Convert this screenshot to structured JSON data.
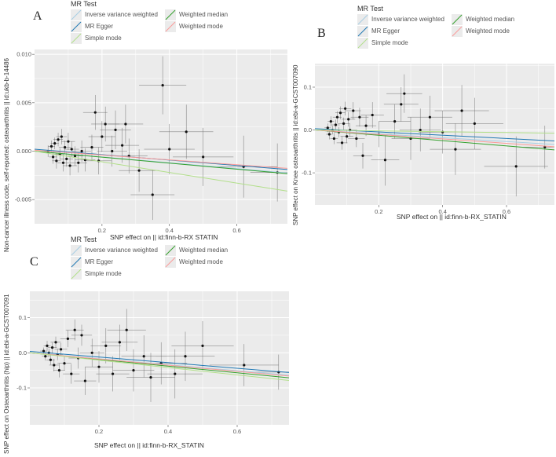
{
  "legend": {
    "title": "MR Test",
    "items": [
      {
        "label": "Inverse variance weighted",
        "color": "#a6cee3"
      },
      {
        "label": "Weighted median",
        "color": "#33a02c"
      },
      {
        "label": "MR Egger",
        "color": "#1f78b4"
      },
      {
        "label": "Weighted mode",
        "color": "#fb9a99"
      },
      {
        "label": "Simple mode",
        "color": "#b2df8a"
      }
    ]
  },
  "chart_data": [
    {
      "panel_label": "A",
      "type": "scatter",
      "xlabel": "SNP effect on  || id:finn-b-RX  STATIN",
      "ylabel": "Non-cancer illness code, self-reported: osteoarthritis || id:ukb-b-14486",
      "xlim": [
        0.0,
        0.75
      ],
      "ylim": [
        -0.0075,
        0.0105
      ],
      "xticks": [
        0.2,
        0.4,
        0.6
      ],
      "xtick_labels": [
        "0.2",
        "0.4",
        "0.6"
      ],
      "yticks": [
        -0.005,
        0.0,
        0.005,
        0.01
      ],
      "ytick_labels": [
        "-0.005",
        "0.000",
        "0.005",
        "0.010"
      ],
      "lines": [
        {
          "method": "Inverse variance weighted",
          "slope": -0.003,
          "intercept": 0.0
        },
        {
          "method": "Weighted median",
          "slope": -0.0031,
          "intercept": 0.0
        },
        {
          "method": "MR Egger",
          "slope": -0.0028,
          "intercept": 0.0002
        },
        {
          "method": "Weighted mode",
          "slope": -0.0025,
          "intercept": 0.0001
        },
        {
          "method": "Simple mode",
          "slope": -0.0055,
          "intercept": 0.0
        }
      ],
      "points": [
        {
          "x": 0.04,
          "y": 0.0,
          "xe": 0.01,
          "ye": 0.0006
        },
        {
          "x": 0.05,
          "y": 0.0005,
          "xe": 0.01,
          "ye": 0.0006
        },
        {
          "x": 0.055,
          "y": -0.0006,
          "xe": 0.012,
          "ye": 0.0007
        },
        {
          "x": 0.06,
          "y": 0.0008,
          "xe": 0.012,
          "ye": 0.0006
        },
        {
          "x": 0.065,
          "y": -0.001,
          "xe": 0.013,
          "ye": 0.0008
        },
        {
          "x": 0.07,
          "y": 0.0012,
          "xe": 0.014,
          "ye": 0.0007
        },
        {
          "x": 0.075,
          "y": -0.0003,
          "xe": 0.015,
          "ye": 0.0006
        },
        {
          "x": 0.08,
          "y": 0.0015,
          "xe": 0.016,
          "ye": 0.0008
        },
        {
          "x": 0.085,
          "y": -0.0012,
          "xe": 0.017,
          "ye": 0.0009
        },
        {
          "x": 0.09,
          "y": 0.0004,
          "xe": 0.018,
          "ye": 0.0007
        },
        {
          "x": 0.095,
          "y": -0.0008,
          "xe": 0.019,
          "ye": 0.0008
        },
        {
          "x": 0.1,
          "y": 0.001,
          "xe": 0.02,
          "ye": 0.0009
        },
        {
          "x": 0.105,
          "y": -0.0015,
          "xe": 0.021,
          "ye": 0.001
        },
        {
          "x": 0.11,
          "y": 0.0002,
          "xe": 0.022,
          "ye": 0.0008
        },
        {
          "x": 0.12,
          "y": -0.0005,
          "xe": 0.024,
          "ye": 0.001
        },
        {
          "x": 0.13,
          "y": -0.0012,
          "xe": 0.026,
          "ye": 0.001
        },
        {
          "x": 0.14,
          "y": 0.0,
          "xe": 0.028,
          "ye": 0.0011
        },
        {
          "x": 0.15,
          "y": -0.0009,
          "xe": 0.03,
          "ye": 0.0012
        },
        {
          "x": 0.17,
          "y": 0.0004,
          "xe": 0.034,
          "ye": 0.0013
        },
        {
          "x": 0.18,
          "y": 0.004,
          "xe": 0.036,
          "ye": 0.0018
        },
        {
          "x": 0.19,
          "y": -0.001,
          "xe": 0.038,
          "ye": 0.0014
        },
        {
          "x": 0.2,
          "y": 0.0015,
          "xe": 0.04,
          "ye": 0.0016
        },
        {
          "x": 0.21,
          "y": 0.0028,
          "xe": 0.042,
          "ye": 0.0018
        },
        {
          "x": 0.23,
          "y": 0.0,
          "xe": 0.045,
          "ye": 0.0016
        },
        {
          "x": 0.24,
          "y": 0.0022,
          "xe": 0.046,
          "ye": 0.002
        },
        {
          "x": 0.26,
          "y": 0.0006,
          "xe": 0.05,
          "ye": 0.0018
        },
        {
          "x": 0.27,
          "y": 0.0028,
          "xe": 0.052,
          "ye": 0.002
        },
        {
          "x": 0.28,
          "y": -0.0005,
          "xe": 0.055,
          "ye": 0.0018
        },
        {
          "x": 0.31,
          "y": -0.002,
          "xe": 0.06,
          "ye": 0.0022
        },
        {
          "x": 0.35,
          "y": -0.0045,
          "xe": 0.065,
          "ye": 0.0026
        },
        {
          "x": 0.38,
          "y": 0.0068,
          "xe": 0.07,
          "ye": 0.003
        },
        {
          "x": 0.4,
          "y": 0.0002,
          "xe": 0.075,
          "ye": 0.0026
        },
        {
          "x": 0.45,
          "y": 0.002,
          "xe": 0.08,
          "ye": 0.0028
        },
        {
          "x": 0.5,
          "y": -0.0006,
          "xe": 0.09,
          "ye": 0.003
        },
        {
          "x": 0.62,
          "y": -0.0016,
          "xe": 0.1,
          "ye": 0.0032
        },
        {
          "x": 0.72,
          "y": -0.0022,
          "xe": 0.08,
          "ye": 0.003
        }
      ]
    },
    {
      "panel_label": "B",
      "type": "scatter",
      "xlabel": "SNP effect on  || id:finn-b-RX_STATIN",
      "ylabel": "SNP effect on Knee osteoarthritis || id:ebi-a-GCST007090",
      "xlim": [
        0.0,
        0.75
      ],
      "ylim": [
        -0.175,
        0.155
      ],
      "xticks": [
        0.2,
        0.4,
        0.6
      ],
      "xtick_labels": [
        "0.2",
        "0.4",
        "0.6"
      ],
      "yticks": [
        -0.1,
        0.0,
        0.1
      ],
      "ytick_labels": [
        "-0.1",
        "0.0",
        "0.1"
      ],
      "lines": [
        {
          "method": "Inverse variance weighted",
          "slope": -0.045,
          "intercept": 0.0
        },
        {
          "method": "Weighted median",
          "slope": -0.062,
          "intercept": 0.0
        },
        {
          "method": "MR Egger",
          "slope": -0.038,
          "intercept": 0.003
        },
        {
          "method": "Weighted mode",
          "slope": -0.052,
          "intercept": 0.0
        },
        {
          "method": "Simple mode",
          "slope": -0.01,
          "intercept": 0.0
        }
      ],
      "points": [
        {
          "x": 0.04,
          "y": 0.005,
          "xe": 0.01,
          "ye": 0.01
        },
        {
          "x": 0.045,
          "y": -0.01,
          "xe": 0.01,
          "ye": 0.012
        },
        {
          "x": 0.05,
          "y": 0.02,
          "xe": 0.01,
          "ye": 0.012
        },
        {
          "x": 0.055,
          "y": 0.0,
          "xe": 0.012,
          "ye": 0.01
        },
        {
          "x": 0.06,
          "y": -0.02,
          "xe": 0.012,
          "ye": 0.013
        },
        {
          "x": 0.065,
          "y": 0.012,
          "xe": 0.013,
          "ye": 0.012
        },
        {
          "x": 0.07,
          "y": 0.03,
          "xe": 0.014,
          "ye": 0.014
        },
        {
          "x": 0.075,
          "y": -0.005,
          "xe": 0.015,
          "ye": 0.012
        },
        {
          "x": 0.08,
          "y": 0.04,
          "xe": 0.016,
          "ye": 0.015
        },
        {
          "x": 0.085,
          "y": -0.03,
          "xe": 0.017,
          "ye": 0.016
        },
        {
          "x": 0.09,
          "y": 0.015,
          "xe": 0.018,
          "ye": 0.014
        },
        {
          "x": 0.095,
          "y": 0.05,
          "xe": 0.019,
          "ye": 0.016
        },
        {
          "x": 0.1,
          "y": -0.015,
          "xe": 0.02,
          "ye": 0.016
        },
        {
          "x": 0.105,
          "y": 0.025,
          "xe": 0.021,
          "ye": 0.017
        },
        {
          "x": 0.11,
          "y": 0.0,
          "xe": 0.022,
          "ye": 0.016
        },
        {
          "x": 0.12,
          "y": 0.045,
          "xe": 0.024,
          "ye": 0.02
        },
        {
          "x": 0.13,
          "y": -0.02,
          "xe": 0.026,
          "ye": 0.02
        },
        {
          "x": 0.14,
          "y": 0.03,
          "xe": 0.028,
          "ye": 0.022
        },
        {
          "x": 0.15,
          "y": -0.06,
          "xe": 0.03,
          "ye": 0.03
        },
        {
          "x": 0.16,
          "y": 0.01,
          "xe": 0.032,
          "ye": 0.024
        },
        {
          "x": 0.18,
          "y": 0.035,
          "xe": 0.036,
          "ye": 0.03
        },
        {
          "x": 0.2,
          "y": -0.01,
          "xe": 0.04,
          "ye": 0.03
        },
        {
          "x": 0.22,
          "y": -0.07,
          "xe": 0.044,
          "ye": 0.06
        },
        {
          "x": 0.25,
          "y": 0.02,
          "xe": 0.05,
          "ye": 0.04
        },
        {
          "x": 0.27,
          "y": 0.06,
          "xe": 0.054,
          "ye": 0.04
        },
        {
          "x": 0.28,
          "y": 0.085,
          "xe": 0.056,
          "ye": 0.045
        },
        {
          "x": 0.3,
          "y": -0.02,
          "xe": 0.06,
          "ye": 0.05
        },
        {
          "x": 0.33,
          "y": 0.0,
          "xe": 0.065,
          "ye": 0.05
        },
        {
          "x": 0.36,
          "y": 0.03,
          "xe": 0.07,
          "ye": 0.05
        },
        {
          "x": 0.4,
          "y": -0.005,
          "xe": 0.075,
          "ye": 0.05
        },
        {
          "x": 0.44,
          "y": -0.045,
          "xe": 0.08,
          "ye": 0.06
        },
        {
          "x": 0.46,
          "y": 0.045,
          "xe": 0.085,
          "ye": 0.06
        },
        {
          "x": 0.5,
          "y": 0.015,
          "xe": 0.09,
          "ye": 0.06
        },
        {
          "x": 0.63,
          "y": -0.085,
          "xe": 0.1,
          "ye": 0.07
        },
        {
          "x": 0.72,
          "y": -0.04,
          "xe": 0.08,
          "ye": 0.05
        }
      ]
    },
    {
      "panel_label": "C",
      "type": "scatter",
      "xlabel": "SNP effect on  || id:finn-b-RX_STATIN",
      "ylabel": "SNP effect on Osteoarthritis (hip) || id:ebi-a-GCST007091",
      "xlim": [
        0.0,
        0.75
      ],
      "ylim": [
        -0.205,
        0.175
      ],
      "xticks": [
        0.2,
        0.4,
        0.6
      ],
      "xtick_labels": [
        "0.2",
        "0.4",
        "0.6"
      ],
      "yticks": [
        -0.1,
        0.0,
        0.1
      ],
      "ytick_labels": [
        "-0.1",
        "0.0",
        "0.1"
      ],
      "lines": [
        {
          "method": "Inverse variance weighted",
          "slope": -0.085,
          "intercept": 0.0
        },
        {
          "method": "Weighted median",
          "slope": -0.095,
          "intercept": 0.0
        },
        {
          "method": "MR Egger",
          "slope": -0.08,
          "intercept": 0.004
        },
        {
          "method": "Weighted mode",
          "slope": -0.088,
          "intercept": 0.0
        },
        {
          "method": "Simple mode",
          "slope": -0.105,
          "intercept": 0.0
        }
      ],
      "points": [
        {
          "x": 0.04,
          "y": 0.005,
          "xe": 0.01,
          "ye": 0.01
        },
        {
          "x": 0.045,
          "y": -0.01,
          "xe": 0.01,
          "ye": 0.012
        },
        {
          "x": 0.05,
          "y": 0.02,
          "xe": 0.01,
          "ye": 0.014
        },
        {
          "x": 0.055,
          "y": 0.0,
          "xe": 0.012,
          "ye": 0.012
        },
        {
          "x": 0.06,
          "y": -0.02,
          "xe": 0.012,
          "ye": 0.014
        },
        {
          "x": 0.065,
          "y": 0.015,
          "xe": 0.013,
          "ye": 0.014
        },
        {
          "x": 0.07,
          "y": -0.035,
          "xe": 0.014,
          "ye": 0.018
        },
        {
          "x": 0.075,
          "y": 0.03,
          "xe": 0.015,
          "ye": 0.016
        },
        {
          "x": 0.08,
          "y": -0.005,
          "xe": 0.016,
          "ye": 0.016
        },
        {
          "x": 0.085,
          "y": -0.05,
          "xe": 0.017,
          "ye": 0.02
        },
        {
          "x": 0.09,
          "y": 0.01,
          "xe": 0.018,
          "ye": 0.018
        },
        {
          "x": 0.1,
          "y": -0.03,
          "xe": 0.02,
          "ye": 0.02
        },
        {
          "x": 0.11,
          "y": 0.04,
          "xe": 0.022,
          "ye": 0.024
        },
        {
          "x": 0.12,
          "y": -0.06,
          "xe": 0.024,
          "ye": 0.028
        },
        {
          "x": 0.13,
          "y": 0.065,
          "xe": 0.026,
          "ye": 0.03
        },
        {
          "x": 0.14,
          "y": -0.015,
          "xe": 0.028,
          "ye": 0.03
        },
        {
          "x": 0.15,
          "y": 0.05,
          "xe": 0.03,
          "ye": 0.03
        },
        {
          "x": 0.16,
          "y": -0.08,
          "xe": 0.032,
          "ye": 0.04
        },
        {
          "x": 0.18,
          "y": 0.0,
          "xe": 0.036,
          "ye": 0.04
        },
        {
          "x": 0.2,
          "y": -0.04,
          "xe": 0.04,
          "ye": 0.045
        },
        {
          "x": 0.22,
          "y": 0.02,
          "xe": 0.044,
          "ye": 0.05
        },
        {
          "x": 0.24,
          "y": -0.06,
          "xe": 0.048,
          "ye": 0.05
        },
        {
          "x": 0.26,
          "y": 0.03,
          "xe": 0.052,
          "ye": 0.05
        },
        {
          "x": 0.28,
          "y": 0.065,
          "xe": 0.056,
          "ye": 0.06
        },
        {
          "x": 0.3,
          "y": -0.05,
          "xe": 0.06,
          "ye": 0.06
        },
        {
          "x": 0.33,
          "y": -0.01,
          "xe": 0.065,
          "ye": 0.06
        },
        {
          "x": 0.35,
          "y": -0.07,
          "xe": 0.07,
          "ye": 0.07
        },
        {
          "x": 0.38,
          "y": -0.03,
          "xe": 0.075,
          "ye": 0.06
        },
        {
          "x": 0.42,
          "y": -0.06,
          "xe": 0.08,
          "ye": 0.07
        },
        {
          "x": 0.45,
          "y": -0.01,
          "xe": 0.085,
          "ye": 0.07
        },
        {
          "x": 0.5,
          "y": 0.02,
          "xe": 0.09,
          "ye": 0.07
        },
        {
          "x": 0.62,
          "y": -0.035,
          "xe": 0.1,
          "ye": 0.06
        },
        {
          "x": 0.72,
          "y": -0.055,
          "xe": 0.08,
          "ye": 0.05
        }
      ]
    }
  ]
}
